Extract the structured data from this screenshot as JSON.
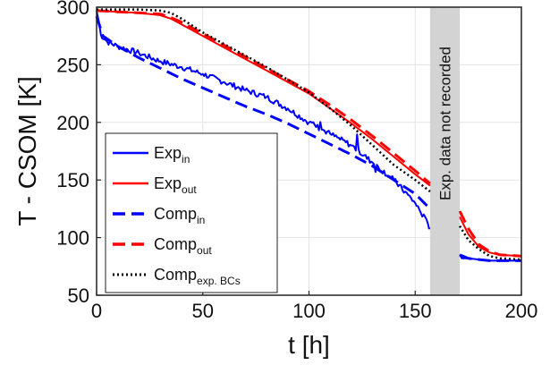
{
  "chart_data": {
    "type": "line",
    "xlabel": "t [h]",
    "ylabel": "T - CSOM [K]",
    "xlim": [
      0,
      200
    ],
    "ylim": [
      50,
      300
    ],
    "xticks": [
      "0",
      "50",
      "100",
      "150",
      "200"
    ],
    "yticks": [
      "50",
      "100",
      "150",
      "200",
      "250",
      "300"
    ],
    "grid": true,
    "legend_position": "bottom-left",
    "shaded_band": {
      "x_range": [
        157,
        171
      ],
      "label": "Exp. data not recorded",
      "color": "#d3d3d3"
    },
    "series": [
      {
        "name": "Exp",
        "name_sub": "in",
        "color": "#0000ff",
        "dash": "solid",
        "noisy": true,
        "x": [
          0,
          1,
          2,
          5,
          10,
          20,
          30,
          40,
          50,
          60,
          70,
          80,
          90,
          100,
          110,
          120,
          130,
          140,
          150,
          156,
          157
        ],
        "y": [
          297,
          288,
          276,
          270,
          266,
          260,
          253,
          248,
          242,
          235,
          228,
          222,
          212,
          200,
          190,
          180,
          165,
          150,
          130,
          112,
          108
        ],
        "x2": [
          171,
          172,
          175,
          180,
          185,
          190,
          200
        ],
        "y2": [
          85,
          82,
          82,
          81,
          80,
          80,
          80
        ]
      },
      {
        "name": "Exp",
        "name_sub": "out",
        "color": "#ff0000",
        "dash": "solid",
        "noisy": false,
        "x": [
          0,
          10,
          20,
          30,
          35,
          40,
          50,
          60,
          70,
          80,
          90,
          100,
          110,
          120,
          130,
          140,
          150,
          157
        ],
        "y": [
          297,
          296,
          295,
          293,
          290,
          285,
          275,
          265,
          255,
          245,
          235,
          225,
          212,
          199,
          185,
          170,
          155,
          145
        ],
        "x2": [
          171,
          175,
          180,
          185,
          190,
          200
        ],
        "y2": [
          118,
          103,
          92,
          87,
          85,
          84
        ]
      },
      {
        "name": "Comp",
        "name_sub": "in",
        "color": "#0000ff",
        "dash": "dashed",
        "noisy": false,
        "x": [
          0,
          3,
          10,
          20,
          30,
          40,
          50,
          60,
          70,
          80,
          90,
          100,
          110,
          120,
          130,
          140,
          150,
          157
        ],
        "y": [
          292,
          275,
          266,
          256,
          247,
          238,
          230,
          222,
          214,
          207,
          199,
          190,
          181,
          172,
          162,
          150,
          138,
          125
        ],
        "x2": [
          171,
          175,
          180,
          185,
          190,
          200
        ],
        "y2": [
          85,
          82,
          81,
          80,
          80,
          80
        ]
      },
      {
        "name": "Comp",
        "name_sub": "out",
        "color": "#ff0000",
        "dash": "dashed",
        "noisy": false,
        "x": [
          0,
          10,
          20,
          30,
          35,
          40,
          50,
          60,
          70,
          80,
          90,
          100,
          110,
          120,
          130,
          140,
          150,
          157
        ],
        "y": [
          297,
          296,
          295,
          294,
          291,
          287,
          277,
          267,
          257,
          247,
          237,
          227,
          215,
          202,
          188,
          173,
          158,
          147
        ],
        "x2": [
          171,
          175,
          180,
          185,
          190,
          200
        ],
        "y2": [
          123,
          108,
          94,
          88,
          85,
          84
        ]
      },
      {
        "name": "Comp",
        "name_sub": "exp. BCs",
        "color": "#000000",
        "dash": "dotted",
        "noisy": false,
        "x": [
          0,
          10,
          20,
          30,
          35,
          40,
          50,
          60,
          70,
          80,
          90,
          100,
          110,
          120,
          130,
          140,
          150,
          157
        ],
        "y": [
          298,
          298,
          298,
          297,
          295,
          290,
          278,
          268,
          258,
          248,
          237,
          226,
          212,
          197,
          180,
          163,
          150,
          140
        ],
        "x2": [
          171,
          175,
          180,
          185,
          190,
          200
        ],
        "y2": [
          110,
          98,
          90,
          84,
          82,
          81
        ]
      }
    ]
  }
}
